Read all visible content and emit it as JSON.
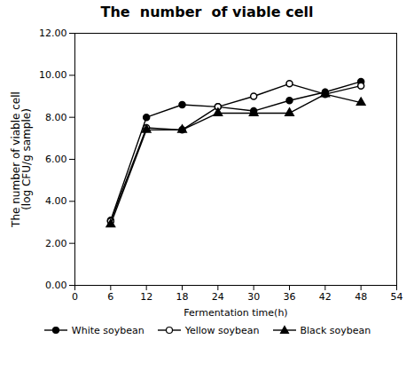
{
  "chart_data": {
    "type": "line",
    "title": "The  number  of viable cell",
    "xlabel": "Fermentation time(h)",
    "ylabel": "The number of viable cell\n(log CFU/g sample)",
    "x": [
      6,
      12,
      18,
      24,
      30,
      36,
      42,
      48
    ],
    "series": [
      {
        "name": "White soybean",
        "color": "black",
        "marker": "circle",
        "values": [
          3.1,
          8.0,
          8.6,
          8.5,
          8.3,
          8.8,
          9.2,
          9.7
        ]
      },
      {
        "name": "Yellow soybean",
        "color": "black",
        "marker": "open_circle",
        "values": [
          3.05,
          7.5,
          7.4,
          8.5,
          9.0,
          9.6,
          9.1,
          9.5
        ]
      },
      {
        "name": "Black soybean",
        "color": "black",
        "marker": "triangle",
        "values": [
          2.9,
          7.4,
          7.4,
          8.2,
          8.2,
          8.2,
          9.1,
          8.7
        ]
      }
    ],
    "xlim": [
      0,
      54
    ],
    "xticks": [
      0,
      6,
      12,
      18,
      24,
      30,
      36,
      42,
      48,
      54
    ],
    "ylim": [
      0,
      12
    ],
    "yticks": [
      {
        "value": 0,
        "label": "0.00"
      },
      {
        "value": 2,
        "label": "2.00"
      },
      {
        "value": 4,
        "label": "4.00"
      },
      {
        "value": 6,
        "label": "6.00"
      },
      {
        "value": 8,
        "label": "8.00"
      },
      {
        "value": 10,
        "label": "10.00"
      },
      {
        "value": 12,
        "label": "12.00"
      }
    ],
    "grid": false,
    "legend": "bottom"
  }
}
